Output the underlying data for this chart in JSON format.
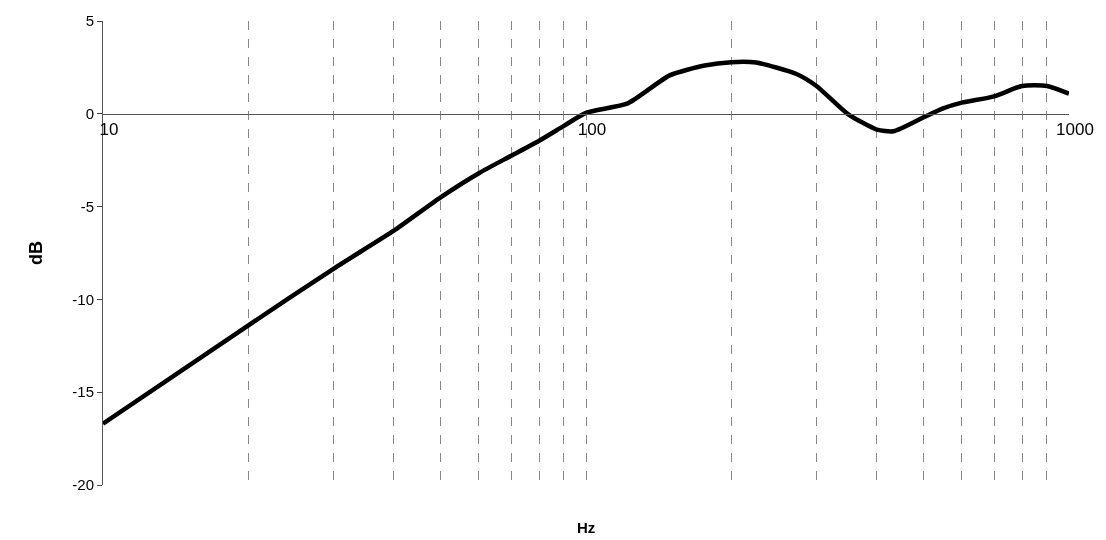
{
  "chart_data": {
    "type": "line",
    "xlabel": "Hz",
    "ylabel": "dB",
    "log": "x",
    "grid": "x",
    "marker": "none",
    "line_style": "solid",
    "xlim": [
      10,
      1000
    ],
    "ylim": [
      -20,
      5
    ],
    "xticks": [
      10,
      {
        "value": 20,
        "label": null
      },
      {
        "value": 30,
        "label": null
      },
      {
        "value": 40,
        "label": null
      },
      {
        "value": 50,
        "label": null
      },
      {
        "value": 60,
        "label": null
      },
      {
        "value": 70,
        "label": null
      },
      {
        "value": 80,
        "label": null
      },
      {
        "value": 90,
        "label": null
      },
      100,
      {
        "value": 200,
        "label": null
      },
      {
        "value": 300,
        "label": null
      },
      {
        "value": 400,
        "label": null
      },
      {
        "value": 500,
        "label": null
      },
      {
        "value": 600,
        "label": null
      },
      {
        "value": 700,
        "label": null
      },
      {
        "value": 800,
        "label": null
      },
      {
        "value": 900,
        "label": null
      },
      1000
    ],
    "yticks": [
      5,
      0,
      -5,
      -10,
      -15,
      -20
    ],
    "x": [
      10,
      20,
      30,
      40,
      50,
      60,
      70,
      80,
      90,
      100,
      122,
      149,
      176,
      200,
      225,
      272,
      300,
      348,
      400,
      433,
      500,
      547,
      600,
      700,
      800,
      900,
      1000
    ],
    "series": [
      {
        "color": "#000000",
        "values": [
          -16.7,
          -11.4,
          -8.35,
          -6.3,
          -4.5,
          -3.2,
          -2.26,
          -1.45,
          -0.65,
          0.05,
          0.56,
          2.07,
          2.6,
          2.78,
          2.76,
          2.16,
          1.5,
          0,
          -0.85,
          -0.94,
          -0.19,
          0.28,
          0.6,
          0.94,
          1.5,
          1.5,
          1.09
        ]
      }
    ]
  }
}
